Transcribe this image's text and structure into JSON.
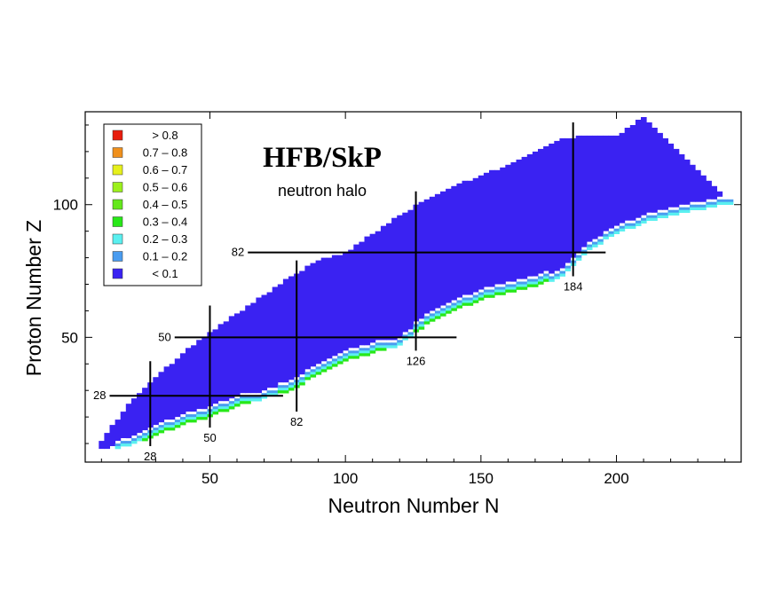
{
  "chart_data": {
    "type": "heatmap",
    "title": "HFB/SkP",
    "subtitle": "neutron halo",
    "xlabel": "Neutron Number N",
    "ylabel": "Proton Number Z",
    "xlim": [
      4,
      246
    ],
    "ylim": [
      3,
      135
    ],
    "xticks": [
      50,
      100,
      150,
      200
    ],
    "yticks": [
      50,
      100
    ],
    "grid": false,
    "legend_position": "top-left",
    "legend": [
      {
        "label": "> 0.8",
        "color": "#e81c0c"
      },
      {
        "label": "0.7 – 0.8",
        "color": "#f0901c"
      },
      {
        "label": "0.6 – 0.7",
        "color": "#e6f01c"
      },
      {
        "label": "0.5 – 0.6",
        "color": "#9cf01c"
      },
      {
        "label": "0.4 – 0.5",
        "color": "#64e81c"
      },
      {
        "label": "0.3 – 0.4",
        "color": "#28e818"
      },
      {
        "label": "0.2 – 0.3",
        "color": "#5af0f0"
      },
      {
        "label": "0.1 – 0.2",
        "color": "#4a9cf0"
      },
      {
        "label": "< 0.1",
        "color": "#3a22f2"
      }
    ],
    "magic_numbers": {
      "proton": [
        28,
        50,
        82
      ],
      "neutron": [
        28,
        50,
        82,
        126,
        184
      ]
    },
    "proton_lines": [
      {
        "Z": 28,
        "N": [
          13,
          77
        ]
      },
      {
        "Z": 50,
        "N": [
          37,
          141
        ]
      },
      {
        "Z": 82,
        "N": [
          64,
          196
        ]
      }
    ],
    "neutron_lines": [
      {
        "N": 28,
        "Z": [
          9,
          41
        ]
      },
      {
        "N": 50,
        "Z": [
          16,
          62
        ]
      },
      {
        "N": 82,
        "Z": [
          22,
          79
        ]
      },
      {
        "N": 126,
        "Z": [
          45,
          105
        ]
      },
      {
        "N": 184,
        "Z": [
          73,
          131
        ]
      }
    ],
    "halo_value_range_by_N": [
      {
        "N": 10,
        "Zmin": 7,
        "Zmax": 10,
        "halo": []
      },
      {
        "N": 20,
        "Zmin": 9,
        "Zmax": 24,
        "halo": [
          {
            "Z": 10,
            "level": "0.1 – 0.2"
          },
          {
            "Z": 11,
            "level": "0.2 – 0.3"
          }
        ]
      },
      {
        "N": 30,
        "Zmin": 13,
        "Zmax": 34,
        "halo": [
          {
            "Z": 14,
            "level": "0.1 – 0.2"
          },
          {
            "Z": 13,
            "level": "0.2 – 0.3"
          },
          {
            "Z": 12,
            "level": "0.3 – 0.4"
          }
        ]
      },
      {
        "N": 40,
        "Zmin": 17,
        "Zmax": 43,
        "halo": [
          {
            "Z": 19,
            "level": "0.1 – 0.2"
          },
          {
            "Z": 18,
            "level": "0.2 – 0.3"
          },
          {
            "Z": 17,
            "level": "0.3 – 0.4"
          }
        ]
      },
      {
        "N": 50,
        "Zmin": 20,
        "Zmax": 51,
        "halo": [
          {
            "Z": 23,
            "level": "0.1 – 0.2"
          },
          {
            "Z": 22,
            "level": "0.2 – 0.3"
          },
          {
            "Z": 21,
            "level": "0.3 – 0.4"
          }
        ]
      },
      {
        "N": 60,
        "Zmin": 24,
        "Zmax": 58,
        "halo": [
          {
            "Z": 27,
            "level": "0.1 – 0.2"
          },
          {
            "Z": 26,
            "level": "0.2 – 0.3"
          },
          {
            "Z": 25,
            "level": "0.3 – 0.4"
          }
        ]
      },
      {
        "N": 70,
        "Zmin": 27,
        "Zmax": 65,
        "halo": [
          {
            "Z": 30,
            "level": "0.1 – 0.2"
          },
          {
            "Z": 29,
            "level": "0.2 – 0.3"
          }
        ]
      },
      {
        "N": 80,
        "Zmin": 30,
        "Zmax": 72,
        "halo": [
          {
            "Z": 34,
            "level": "0.1 – 0.2"
          },
          {
            "Z": 33,
            "level": "0.2 – 0.3"
          },
          {
            "Z": 31,
            "level": "0.3 – 0.4"
          }
        ]
      },
      {
        "N": 90,
        "Zmin": 36,
        "Zmax": 78,
        "halo": [
          {
            "Z": 39,
            "level": "0.1 – 0.2"
          },
          {
            "Z": 38,
            "level": "0.2 – 0.3"
          },
          {
            "Z": 37,
            "level": "0.3 – 0.4"
          }
        ]
      },
      {
        "N": 100,
        "Zmin": 41,
        "Zmax": 81,
        "halo": [
          {
            "Z": 44,
            "level": "0.1 – 0.2"
          },
          {
            "Z": 43,
            "level": "0.2 – 0.3"
          },
          {
            "Z": 42,
            "level": "0.3 – 0.4"
          }
        ]
      },
      {
        "N": 110,
        "Zmin": 44,
        "Zmax": 88,
        "halo": [
          {
            "Z": 47,
            "level": "0.1 – 0.2"
          },
          {
            "Z": 46,
            "level": "0.2 – 0.3"
          },
          {
            "Z": 45,
            "level": "0.3 – 0.4"
          }
        ]
      },
      {
        "N": 120,
        "Zmin": 47,
        "Zmax": 95,
        "halo": [
          {
            "Z": 50,
            "level": "0.1 – 0.2"
          },
          {
            "Z": 49,
            "level": "0.2 – 0.3"
          }
        ]
      },
      {
        "N": 130,
        "Zmin": 55,
        "Zmax": 101,
        "halo": [
          {
            "Z": 59,
            "level": "0.1 – 0.2"
          },
          {
            "Z": 58,
            "level": "0.2 – 0.3"
          },
          {
            "Z": 56,
            "level": "0.3 – 0.4"
          }
        ]
      },
      {
        "N": 140,
        "Zmin": 60,
        "Zmax": 106,
        "halo": [
          {
            "Z": 64,
            "level": "0.1 – 0.2"
          },
          {
            "Z": 63,
            "level": "0.2 – 0.3"
          },
          {
            "Z": 61,
            "level": "0.3 – 0.4"
          }
        ]
      },
      {
        "N": 150,
        "Zmin": 64,
        "Zmax": 110,
        "halo": [
          {
            "Z": 67,
            "level": "0.1 – 0.2"
          },
          {
            "Z": 66,
            "level": "0.2 – 0.3"
          },
          {
            "Z": 65,
            "level": "0.3 – 0.4"
          }
        ]
      },
      {
        "N": 160,
        "Zmin": 67,
        "Zmax": 114,
        "halo": [
          {
            "Z": 70,
            "level": "0.1 – 0.2"
          },
          {
            "Z": 69,
            "level": "0.2 – 0.3"
          },
          {
            "Z": 68,
            "level": "0.3 – 0.4"
          }
        ]
      },
      {
        "N": 170,
        "Zmin": 69,
        "Zmax": 119,
        "halo": [
          {
            "Z": 72,
            "level": "0.1 – 0.2"
          },
          {
            "Z": 71,
            "level": "0.2 – 0.3"
          },
          {
            "Z": 70,
            "level": "0.3 – 0.4"
          }
        ]
      },
      {
        "N": 180,
        "Zmin": 73,
        "Zmax": 124,
        "halo": [
          {
            "Z": 76,
            "level": "0.1 – 0.2"
          },
          {
            "Z": 75,
            "level": "0.2 – 0.3"
          }
        ]
      },
      {
        "N": 190,
        "Zmin": 83,
        "Zmax": 125,
        "halo": [
          {
            "Z": 87,
            "level": "0.1 – 0.2"
          },
          {
            "Z": 86,
            "level": "0.2 – 0.3"
          }
        ]
      },
      {
        "N": 200,
        "Zmin": 89,
        "Zmax": 125,
        "halo": [
          {
            "Z": 93,
            "level": "0.1 – 0.2"
          },
          {
            "Z": 92,
            "level": "0.2 – 0.3"
          }
        ]
      },
      {
        "N": 210,
        "Zmin": 93,
        "Zmax": 132,
        "halo": [
          {
            "Z": 96,
            "level": "0.1 – 0.2"
          },
          {
            "Z": 95,
            "level": "0.2 – 0.3"
          }
        ]
      },
      {
        "N": 220,
        "Zmin": 96,
        "Zmax": 122,
        "halo": [
          {
            "Z": 99,
            "level": "0.1 – 0.2"
          },
          {
            "Z": 98,
            "level": "0.2 – 0.3"
          }
        ]
      },
      {
        "N": 230,
        "Zmin": 98,
        "Zmax": 112,
        "halo": [
          {
            "Z": 101,
            "level": "0.1 – 0.2"
          },
          {
            "Z": 100,
            "level": "0.2 – 0.3"
          }
        ]
      },
      {
        "N": 240,
        "Zmin": 100,
        "Zmax": 102,
        "halo": [
          {
            "Z": 101,
            "level": "0.1 – 0.2"
          },
          {
            "Z": 100,
            "level": "0.2 – 0.3"
          }
        ]
      }
    ]
  }
}
